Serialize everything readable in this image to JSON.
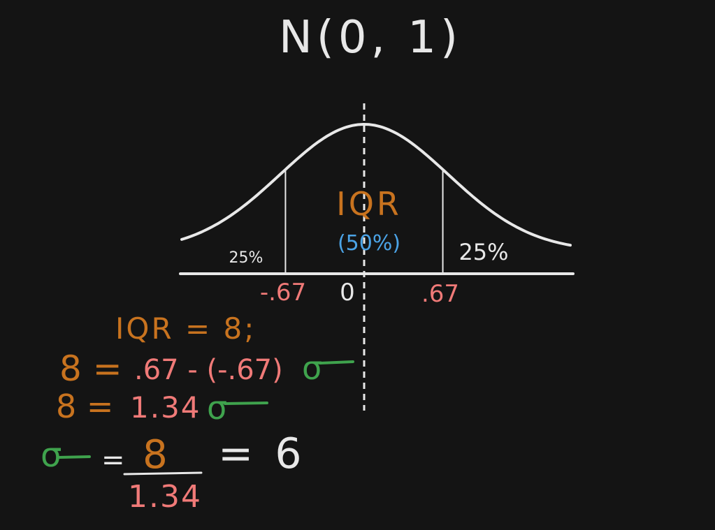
{
  "title": "N(0, 1)",
  "curve": {
    "mean": 0,
    "sd": 1,
    "quartile_low": -0.67,
    "quartile_high": 0.67
  },
  "labels": {
    "iqr": "IQR",
    "iqr_share": "(50%)",
    "left_tail": "25%",
    "right_tail": "25%",
    "tick_left": "-.67",
    "tick_mid": "0",
    "tick_right": ".67"
  },
  "work": {
    "line1": "IQR = 8;",
    "line2_left": "8 =",
    "line2_mid": ".67 - (-.67)",
    "line2_sigma": "σ",
    "line3_left": "8 =",
    "line3_mid": "1.34",
    "line3_sigma": "σ",
    "final_sigma": "σ",
    "final_eq": "=",
    "final_num": "8",
    "final_den": "1.34",
    "final_result": "= 6"
  },
  "colors": {
    "background": "#141414",
    "chalk_white": "#e8e8e8",
    "orange": "#c8731f",
    "salmon": "#f07a78",
    "blue": "#4ba3e6",
    "green": "#3fa34d"
  }
}
